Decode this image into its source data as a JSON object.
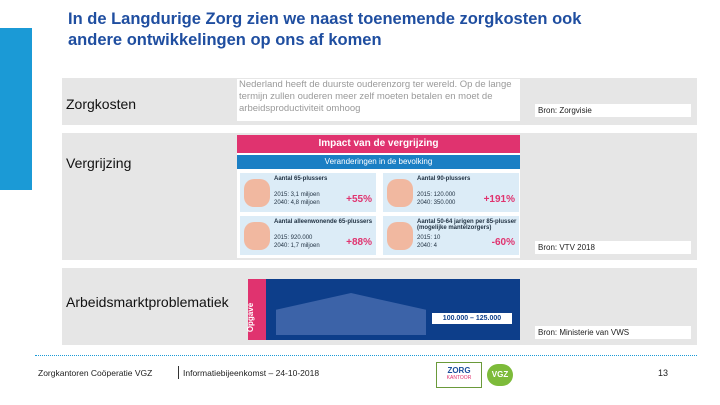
{
  "header": {
    "title_lines": [
      "In de Langdurige Zorg zien we naast toenemende zorgkosten ook",
      "andere ontwikkelingen op ons af komen"
    ]
  },
  "rows": [
    {
      "label": "Zorgkosten",
      "source": "Bron: Zorgvisie"
    },
    {
      "label": "Vergrijzing",
      "source": "Bron: VTV 2018"
    },
    {
      "label": "Arbeidsmarktproblematiek",
      "source": "Bron: Ministerie van VWS"
    }
  ],
  "image1": {
    "lines": [
      "Nederland heeft de duurste ouderenzorg ter wereld. Op de lange",
      "termijn zullen ouderen meer zelf moeten betalen en moet de",
      "arbeidsproductiviteit omhoog"
    ]
  },
  "image2": {
    "title": "Impact van de vergrijzing",
    "subtitle": "Veranderingen in de bevolking",
    "boxes": [
      {
        "heading": "Aantal 65-plussers",
        "line1": "2015: 3,1 miljoen",
        "line2": "2040: 4,8 miljoen",
        "change": "+55%"
      },
      {
        "heading": "Aantal 90-plussers",
        "line1": "2015: 120.000",
        "line2": "2040: 350.000",
        "change": "+191%"
      },
      {
        "heading": "Aantal alleenwonende 65-plussers",
        "line1": "2015: 920.000",
        "line2": "2040: 1,7 miljoen",
        "change": "+88%"
      },
      {
        "heading": "Aantal 50-64 jarigen per 85-plusser (mogelijke mantelzorgers)",
        "line1": "2015: 10",
        "line2": "2040: 4",
        "change": "-60%"
      }
    ]
  },
  "image3": {
    "tag": "Opgave",
    "range": "100.000 – 125.000"
  },
  "footer": {
    "org": "Zorgkantoren Coöperatie VGZ",
    "event": "Informatiebijeenkomst – 24-10-2018",
    "logo1": "ZORG",
    "logo1_sub": "KANTOOR",
    "logo2": "VGZ",
    "page": "13"
  }
}
